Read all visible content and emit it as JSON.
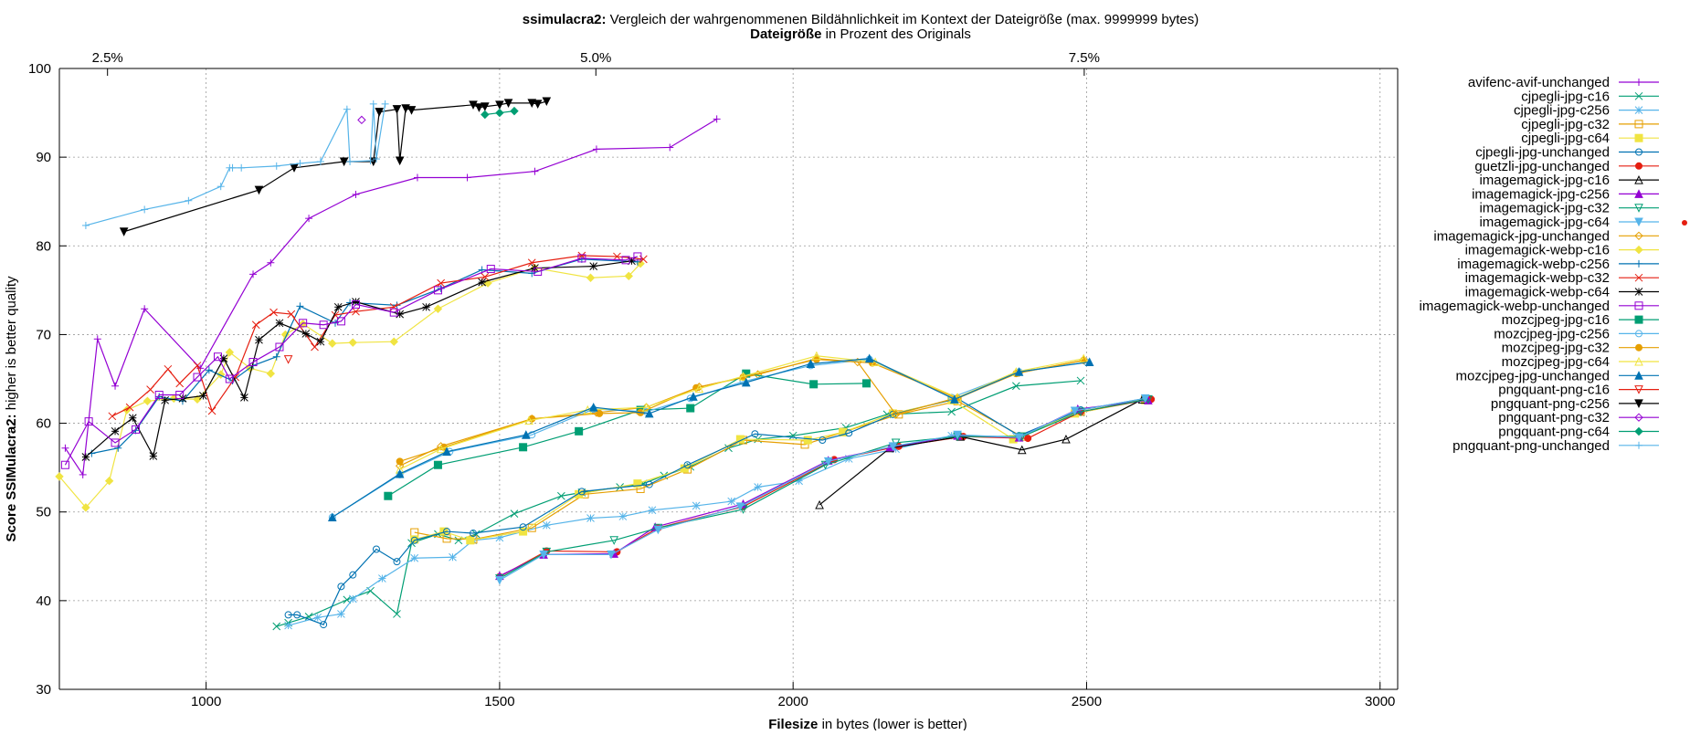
{
  "chart_data": {
    "type": "line",
    "title": {
      "bold": "ssimulacra2:",
      "rest": " Vergleich der wahrgenommenen Bildähnlichkeit im Kontext der Dateigröße (max. 9999999 bytes)"
    },
    "subtitle": {
      "bold": "Dateigröße",
      "rest": " in Prozent des Originals"
    },
    "xlabel": {
      "bold": "Filesize",
      "rest": " in bytes (lower is better)"
    },
    "ylabel": {
      "bold": "Score SSIMulacra2:",
      "rest": " higher is better quality"
    },
    "xlim": [
      750,
      3030
    ],
    "ylim": [
      30,
      100
    ],
    "x_ticks": [
      1000,
      1500,
      2000,
      2500,
      3000
    ],
    "y_ticks": [
      30,
      40,
      50,
      60,
      70,
      80,
      90,
      100
    ],
    "x2_ticks": [
      {
        "label": "2.5%",
        "x": 832
      },
      {
        "label": "5.0%",
        "x": 1664
      },
      {
        "label": "7.5%",
        "x": 2496
      }
    ],
    "grid": true,
    "legend_position": "right",
    "series": [
      {
        "name": "avifenc-avif-unchanged",
        "color": "#9400d3",
        "marker": "plus",
        "x": [
          760,
          790,
          815,
          845,
          895,
          990,
          1080,
          1110,
          1175,
          1255,
          1360,
          1445,
          1560,
          1665,
          1790,
          1870
        ],
        "y": [
          57.2,
          54.2,
          69.5,
          64.2,
          72.9,
          66.2,
          76.8,
          78.1,
          83.1,
          85.8,
          87.7,
          87.7,
          88.4,
          90.9,
          91.1,
          94.3
        ]
      },
      {
        "name": "cjpegli-jpg-c16",
        "color": "#009e73",
        "marker": "x",
        "x": [
          1120,
          1140,
          1175,
          1240,
          1280,
          1325,
          1350,
          1395,
          1430,
          1460,
          1525,
          1605,
          1640,
          1705,
          1745,
          1780,
          1825,
          1890,
          1940,
          2000,
          2090,
          2160,
          2270,
          2380,
          2490
        ],
        "y": [
          37.1,
          37.5,
          38.2,
          40.1,
          41.1,
          38.5,
          46.5,
          47.5,
          46.8,
          47.5,
          49.8,
          51.8,
          52.2,
          52.8,
          53.2,
          54.1,
          55.1,
          57.2,
          58.2,
          58.6,
          59.5,
          61.0,
          61.3,
          64.2,
          64.8
        ]
      },
      {
        "name": "cjpegli-jpg-c256",
        "color": "#56b4e9",
        "marker": "star",
        "x": [
          1140,
          1190,
          1230,
          1250,
          1300,
          1355,
          1420,
          1455,
          1500,
          1580,
          1655,
          1710,
          1760,
          1835,
          1895,
          1940,
          2010,
          2095,
          2175,
          2270,
          2380,
          2490,
          2600
        ],
        "y": [
          37.2,
          38.1,
          38.5,
          40.2,
          42.5,
          44.8,
          44.9,
          46.8,
          47.1,
          48.5,
          49.3,
          49.5,
          50.2,
          50.7,
          51.2,
          52.8,
          53.5,
          56.0,
          57.1,
          58.6,
          58.5,
          61.2,
          62.8
        ]
      },
      {
        "name": "cjpegli-jpg-c32",
        "color": "#e69f00",
        "marker": "open-square",
        "x": [
          1355,
          1410,
          1455,
          1555,
          1645,
          1740,
          1820,
          1915,
          2020,
          2085,
          2180,
          2280,
          2390,
          2490,
          2600
        ],
        "y": [
          47.7,
          47.0,
          46.9,
          48.2,
          52.0,
          52.6,
          54.8,
          58.1,
          57.6,
          59.0,
          61.0,
          62.5,
          58.5,
          61.3,
          62.7
        ]
      },
      {
        "name": "cjpegli-jpg-c64",
        "color": "#f0e442",
        "marker": "filled-square",
        "x": [
          1355,
          1405,
          1450,
          1540,
          1635,
          1735,
          1815,
          1910,
          2025,
          2085,
          2170,
          2270,
          2375,
          2480,
          2600
        ],
        "y": [
          46.9,
          47.8,
          46.8,
          47.8,
          52.0,
          53.2,
          54.9,
          58.2,
          58.1,
          59.0,
          61.1,
          62.6,
          58.2,
          61.1,
          62.6
        ]
      },
      {
        "name": "cjpegli-jpg-unchanged",
        "color": "#0072b2",
        "marker": "open-circle",
        "x": [
          1140,
          1155,
          1200,
          1230,
          1250,
          1290,
          1325,
          1355,
          1410,
          1455,
          1540,
          1640,
          1755,
          1820,
          1935,
          2050,
          2095,
          2170,
          2280,
          2385,
          2490,
          2600
        ],
        "y": [
          38.4,
          38.4,
          37.3,
          41.6,
          42.9,
          45.8,
          44.4,
          46.8,
          47.8,
          47.6,
          48.3,
          52.3,
          53.1,
          55.3,
          58.8,
          58.1,
          58.9,
          61.0,
          62.8,
          58.6,
          61.5,
          62.8
        ]
      },
      {
        "name": "guetzli-jpg-unchanged",
        "color": "#e51e10",
        "marker": "filled-circle",
        "x": [
          1500,
          1580,
          1700,
          1770,
          1915,
          2070,
          2180,
          2290,
          2400,
          2490,
          2610
        ],
        "y": [
          42.7,
          45.6,
          45.5,
          48.2,
          50.6,
          55.9,
          57.4,
          58.5,
          58.3,
          61.3,
          62.7
        ]
      },
      {
        "name": "imagemagick-jpg-c16",
        "color": "#000000",
        "marker": "open-triangle",
        "x": [
          2045,
          2165,
          2285,
          2390,
          2465,
          2595
        ],
        "y": [
          50.8,
          57.2,
          58.5,
          57.0,
          58.2,
          62.7
        ]
      },
      {
        "name": "imagemagick-jpg-c256",
        "color": "#9400d3",
        "marker": "filled-triangle",
        "x": [
          1500,
          1575,
          1695,
          1765,
          1915,
          2060,
          2165,
          2280,
          2385,
          2485,
          2605
        ],
        "y": [
          42.8,
          45.2,
          45.3,
          48.3,
          50.9,
          55.8,
          57.3,
          58.6,
          58.4,
          61.6,
          62.6
        ]
      },
      {
        "name": "imagemagick-jpg-c32",
        "color": "#009e73",
        "marker": "open-inv-triangle",
        "x": [
          1500,
          1580,
          1695,
          1770,
          1915,
          2055,
          2175,
          2280,
          2390,
          2490,
          2605
        ],
        "y": [
          42.5,
          45.5,
          46.8,
          48.2,
          50.3,
          55.3,
          57.8,
          58.5,
          58.5,
          61.3,
          62.7
        ]
      },
      {
        "name": "imagemagick-jpg-c64",
        "color": "#56b4e9",
        "marker": "filled-inv-triangle",
        "x": [
          1500,
          1575,
          1690,
          1770,
          1910,
          2060,
          2170,
          2280,
          2385,
          2480,
          2600
        ],
        "y": [
          42.3,
          45.2,
          45.2,
          48.0,
          50.6,
          55.7,
          57.4,
          58.7,
          58.4,
          61.4,
          62.8
        ]
      },
      {
        "name": "imagemagick-jpg-unchanged",
        "color": "#e69f00",
        "marker": "open-diamond",
        "x": [
          1330,
          1400,
          1555,
          1665,
          1750,
          1840,
          1940,
          2040,
          2110,
          2175,
          2280,
          2385,
          2495
        ],
        "y": [
          55.2,
          57.4,
          60.5,
          61.2,
          61.8,
          64.1,
          65.5,
          67.3,
          66.9,
          61.0,
          62.9,
          65.7,
          67.1
        ]
      },
      {
        "name": "imagemagick-webp-c16",
        "color": "#f0e442",
        "marker": "filled-diamond",
        "x": [
          750,
          795,
          835,
          865,
          900,
          945,
          985,
          1025,
          1040,
          1075,
          1110,
          1135,
          1165,
          1215,
          1250,
          1320,
          1395,
          1480,
          1560,
          1655,
          1720,
          1740
        ],
        "y": [
          54.0,
          50.5,
          53.5,
          61.5,
          62.5,
          62.8,
          62.7,
          65.5,
          68.0,
          66.2,
          65.6,
          70.0,
          71.2,
          69.0,
          69.1,
          69.2,
          72.9,
          75.8,
          77.5,
          76.4,
          76.6,
          78.0
        ]
      },
      {
        "name": "imagemagick-webp-c256",
        "color": "#0072b2",
        "marker": "plus",
        "x": [
          805,
          850,
          880,
          920,
          960,
          1005,
          1045,
          1080,
          1120,
          1160,
          1220,
          1245,
          1325,
          1400,
          1470,
          1555,
          1640,
          1735
        ],
        "y": [
          56.6,
          57.2,
          59.2,
          63.0,
          62.5,
          66.0,
          64.8,
          66.5,
          67.5,
          73.2,
          71.3,
          73.6,
          73.3,
          75.2,
          77.3,
          76.9,
          78.5,
          78.2
        ]
      },
      {
        "name": "imagemagick-webp-c32",
        "color": "#e51e10",
        "marker": "x",
        "x": [
          840,
          870,
          905,
          935,
          955,
          985,
          1010,
          1050,
          1085,
          1115,
          1145,
          1185,
          1220,
          1255,
          1320,
          1400,
          1475,
          1555,
          1640,
          1700,
          1745
        ],
        "y": [
          60.8,
          61.8,
          63.8,
          66.1,
          64.5,
          66.5,
          61.4,
          65.2,
          71.1,
          72.5,
          72.3,
          68.6,
          72.2,
          72.6,
          73.1,
          75.8,
          76.5,
          78.1,
          78.9,
          78.8,
          78.5
        ]
      },
      {
        "name": "imagemagick-webp-c64",
        "color": "#000000",
        "marker": "asterisk",
        "x": [
          795,
          845,
          875,
          910,
          930,
          960,
          995,
          1030,
          1065,
          1090,
          1125,
          1170,
          1195,
          1225,
          1255,
          1330,
          1375,
          1470,
          1560,
          1660,
          1725
        ],
        "y": [
          56.2,
          59.1,
          60.6,
          56.3,
          62.6,
          62.8,
          63.1,
          67.3,
          62.9,
          69.4,
          71.3,
          70.1,
          69.2,
          73.1,
          73.7,
          72.3,
          73.1,
          75.9,
          77.5,
          77.7,
          78.3
        ]
      },
      {
        "name": "imagemagick-webp-unchanged",
        "color": "#9400d3",
        "marker": "open-square",
        "x": [
          760,
          800,
          845,
          880,
          920,
          955,
          985,
          1020,
          1040,
          1080,
          1125,
          1165,
          1200,
          1230,
          1255,
          1320,
          1395,
          1485,
          1565,
          1640,
          1715,
          1735
        ],
        "y": [
          55.3,
          60.2,
          57.8,
          59.3,
          63.2,
          63.2,
          65.2,
          67.5,
          65.0,
          66.9,
          68.6,
          71.3,
          71.1,
          71.5,
          73.4,
          72.5,
          75.0,
          77.4,
          77.1,
          78.6,
          78.4,
          78.8
        ]
      },
      {
        "name": "mozcjpeg-jpg-c16",
        "color": "#009e73",
        "marker": "filled-square",
        "x": [
          1310,
          1395,
          1540,
          1635,
          1740,
          1825,
          1920,
          2035,
          2125
        ],
        "y": [
          51.8,
          55.3,
          57.3,
          59.1,
          61.5,
          61.7,
          65.6,
          64.4,
          64.5
        ]
      },
      {
        "name": "mozcjpeg-jpg-c256",
        "color": "#56b4e9",
        "marker": "open-circle",
        "x": [
          1215,
          1330,
          1415,
          1555,
          1660,
          1750,
          1825,
          1915,
          2030,
          2130,
          2270,
          2385,
          2500
        ],
        "y": [
          49.4,
          54.2,
          56.8,
          58.7,
          61.6,
          61.3,
          62.8,
          64.7,
          66.5,
          67.2,
          62.9,
          65.8,
          66.9
        ]
      },
      {
        "name": "mozcjpeg-jpg-c32",
        "color": "#e69f00",
        "marker": "filled-circle",
        "x": [
          1330,
          1405,
          1555,
          1670,
          1740,
          1835,
          1915,
          2040,
          2135,
          2280,
          2380,
          2495
        ],
        "y": [
          55.7,
          57.3,
          60.5,
          61.1,
          61.2,
          64.0,
          65.2,
          67.2,
          66.8,
          62.8,
          65.6,
          67.1
        ]
      },
      {
        "name": "mozcjpeg-jpg-c64",
        "color": "#f0e442",
        "marker": "open-triangle",
        "x": [
          1330,
          1400,
          1550,
          1650,
          1750,
          1840,
          1915,
          2040,
          2140,
          2280,
          2380,
          2495
        ],
        "y": [
          54.8,
          57.1,
          60.3,
          61.5,
          61.8,
          63.9,
          65.3,
          67.6,
          66.9,
          62.9,
          65.8,
          67.3
        ]
      },
      {
        "name": "mozcjpeg-jpg-unchanged",
        "color": "#0072b2",
        "marker": "filled-triangle",
        "x": [
          1215,
          1330,
          1410,
          1545,
          1660,
          1755,
          1830,
          1920,
          2030,
          2130,
          2275,
          2385,
          2505
        ],
        "y": [
          49.4,
          54.3,
          56.8,
          58.7,
          61.8,
          61.1,
          63.0,
          64.6,
          66.7,
          67.3,
          62.7,
          65.8,
          66.9
        ]
      },
      {
        "name": "pngquant-png-c16",
        "color": "#e51e10",
        "marker": "open-inv-triangle",
        "x": [
          1140
        ],
        "y": [
          67.2
        ]
      },
      {
        "name": "pngquant-png-c256",
        "color": "#000000",
        "marker": "filled-inv-triangle",
        "x": [
          860,
          1090,
          1150,
          1235,
          1285,
          1295,
          1325,
          1330,
          1340,
          1350,
          1455,
          1465,
          1475,
          1500,
          1515,
          1555,
          1565,
          1580
        ],
        "y": [
          81.6,
          86.3,
          88.8,
          89.5,
          89.5,
          95.1,
          95.4,
          89.6,
          95.5,
          95.3,
          95.9,
          95.6,
          95.7,
          95.9,
          96.1,
          96.1,
          96.0,
          96.3
        ]
      },
      {
        "name": "pngquant-png-c32",
        "color": "#9400d3",
        "marker": "open-diamond",
        "x": [
          1265
        ],
        "y": [
          94.2
        ]
      },
      {
        "name": "pngquant-png-c64",
        "color": "#009e73",
        "marker": "filled-diamond",
        "x": [
          1475,
          1500,
          1525
        ],
        "y": [
          94.8,
          95.0,
          95.2
        ]
      },
      {
        "name": "pngquant-png-unchanged",
        "color": "#56b4e9",
        "marker": "plus",
        "x": [
          795,
          895,
          970,
          1025,
          1040,
          1045,
          1060,
          1120,
          1160,
          1195,
          1240,
          1245,
          1280,
          1285,
          1290,
          1305
        ],
        "y": [
          82.3,
          84.1,
          85.1,
          86.7,
          88.8,
          88.8,
          88.8,
          89.0,
          89.3,
          89.5,
          95.4,
          89.5,
          89.6,
          96.0,
          89.8,
          96.0
        ]
      }
    ]
  }
}
